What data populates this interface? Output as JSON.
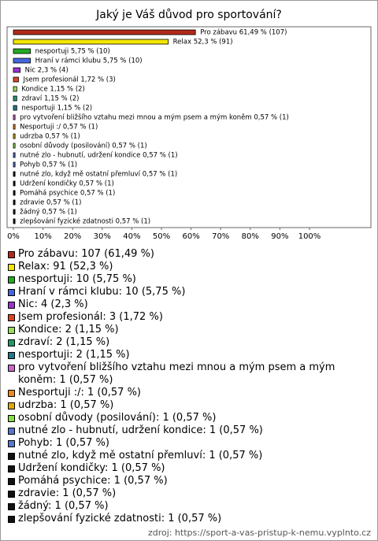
{
  "chart_data": {
    "type": "bar",
    "orientation": "horizontal",
    "title": "Jaký je Váš důvod pro sportování?",
    "values": [
      61.49,
      52.3,
      5.75,
      5.75,
      2.3,
      1.72,
      1.15,
      1.15,
      1.15,
      0.57,
      0.57,
      0.57,
      0.57,
      0.57,
      0.57,
      0.57,
      0.57,
      0.57,
      0.57,
      0.57,
      0.57
    ],
    "value_labels": [
      "Pro zábavu 61,49 % (107)",
      "Relax 52,3 % (91)",
      "nesportuji 5,75 % (10)",
      "Hraní v rámci klubu 5,75 % (10)",
      "Nic 2,3 % (4)",
      "Jsem profesionál 1,72 % (3)",
      "Kondice 1,15 % (2)",
      "zdraví 1,15 % (2)",
      "nesportuji 1,15 % (2)",
      "pro vytvoření bližšího vztahu mezi mnou a mým psem a mým koněm 0,57 % (1)",
      "Nesportuji :/ 0,57 % (1)",
      "udrzba 0,57 % (1)",
      "osobní důvody (posilování) 0,57 % (1)",
      "nutné zlo - hubnutí, udržení kondice 0,57 % (1)",
      "Pohyb 0,57 % (1)",
      "nutné zlo, když mě ostatní přemluví 0,57 % (1)",
      "Udržení kondičky 0,57 % (1)",
      "Pomáhá psychice 0,57 % (1)",
      "zdravie 0,57 % (1)",
      "žádný 0,57 % (1)",
      "zlepšování fyzické zdatnosti 0,57 % (1)"
    ],
    "legend_labels": [
      "Pro zábavu: 107 (61,49 %)",
      "Relax: 91 (52,3 %)",
      "nesportuji: 10 (5,75 %)",
      "Hraní v rámci klubu: 10 (5,75 %)",
      "Nic: 4 (2,3 %)",
      "Jsem profesionál: 3 (1,72 %)",
      "Kondice: 2 (1,15 %)",
      "zdraví: 2 (1,15 %)",
      "nesportuji: 2 (1,15 %)",
      "pro vytvoření bližšího vztahu mezi mnou a mým psem a mým koněm: 1 (0,57 %)",
      "Nesportuji :/: 1 (0,57 %)",
      "udrzba: 1 (0,57 %)",
      "osobní důvody (posilování): 1 (0,57 %)",
      "nutné zlo - hubnutí, udržení kondice: 1 (0,57 %)",
      "Pohyb: 1 (0,57 %)",
      "nutné zlo, když mě ostatní přemluví: 1 (0,57 %)",
      "Udržení kondičky: 1 (0,57 %)",
      "Pomáhá psychice: 1 (0,57 %)",
      "zdravie: 1 (0,57 %)",
      "žádný: 1 (0,57 %)",
      "zlepšování fyzické zdatnosti: 1 (0,57 %)"
    ],
    "colors": [
      "#b22a1a",
      "#f2e600",
      "#22aa22",
      "#4466dd",
      "#9933cc",
      "#dd4422",
      "#99dd55",
      "#229966",
      "#227788",
      "#cc66cc",
      "#ee8822",
      "#ddaa00",
      "#88dd44",
      "#5577cc",
      "#5577cc",
      "#111111",
      "#111111",
      "#111111",
      "#111111",
      "#111111",
      "#111111"
    ],
    "xlim": [
      0,
      100
    ],
    "xticks": [
      {
        "value": 0,
        "label": "0%"
      },
      {
        "value": 10,
        "label": "10%"
      },
      {
        "value": 20,
        "label": "20%"
      },
      {
        "value": 30,
        "label": "30%"
      },
      {
        "value": 40,
        "label": "40%"
      },
      {
        "value": 50,
        "label": "50%"
      },
      {
        "value": 60,
        "label": "60%"
      },
      {
        "value": 70,
        "label": "70%"
      },
      {
        "value": 80,
        "label": "80%"
      },
      {
        "value": 90,
        "label": "90%"
      },
      {
        "value": 100,
        "label": "100%"
      }
    ]
  },
  "source": "zdroj: https://sport-a-vas-pristup-k-nemu.vyplnto.cz"
}
